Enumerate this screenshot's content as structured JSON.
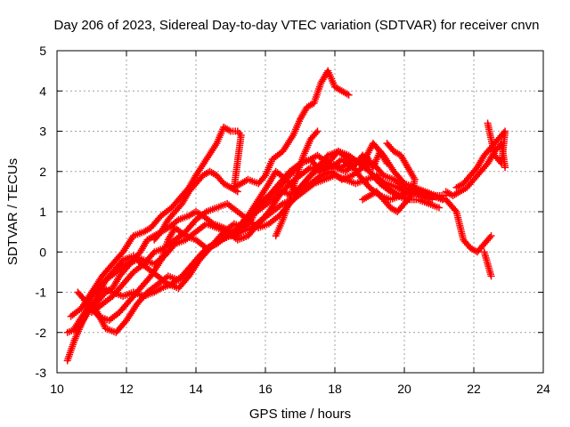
{
  "chart_data": {
    "type": "scatter",
    "title": "Day 206 of 2023, Sidereal Day-to-day VTEC variation (SDTVAR) for receiver cnvn",
    "xlabel": "GPS time / hours",
    "ylabel": "SDTVAR / TECUs",
    "xlim": [
      10,
      24
    ],
    "ylim": [
      -3,
      5
    ],
    "xticks": [
      10,
      12,
      14,
      16,
      18,
      20,
      22,
      24
    ],
    "yticks": [
      -3,
      -2,
      -1,
      0,
      1,
      2,
      3,
      4,
      5
    ],
    "grid": true,
    "marker": "+",
    "color": "#ff0000",
    "tracks": [
      {
        "x": [
          10.3,
          10.5,
          10.8,
          11.0,
          11.3,
          11.6,
          11.9,
          12.2,
          12.5,
          12.7,
          13.0,
          13.3,
          13.5,
          13.8,
          14.0,
          14.3,
          14.6,
          14.8,
          15.0,
          15.2,
          15.3,
          15.1,
          15.5,
          15.8,
          16.0,
          16.2,
          16.5,
          16.8,
          17.0,
          17.2,
          17.4,
          17.6,
          17.8,
          18.0,
          18.2,
          18.4
        ],
        "y": [
          -2.7,
          -2.2,
          -1.6,
          -1.0,
          -0.6,
          -0.3,
          0.0,
          0.4,
          0.5,
          0.6,
          0.9,
          1.1,
          1.3,
          1.6,
          1.9,
          2.3,
          2.7,
          3.1,
          3.0,
          3.0,
          2.9,
          1.6,
          1.8,
          1.7,
          1.9,
          2.3,
          2.5,
          2.9,
          3.3,
          3.6,
          3.7,
          4.2,
          4.5,
          4.1,
          4.0,
          3.9
        ]
      },
      {
        "x": [
          10.3,
          10.6,
          10.9,
          11.2,
          11.4,
          11.6,
          11.8,
          12.0,
          12.2,
          12.4,
          12.6,
          12.8,
          13.0,
          13.2,
          13.5,
          13.8,
          14.0,
          14.2,
          14.5,
          14.8,
          15.0,
          15.2,
          15.4,
          15.7,
          16.0,
          16.3,
          16.6,
          16.8,
          17.0,
          17.3,
          17.5,
          17.8,
          18.0,
          18.3,
          18.6,
          18.9,
          19.1,
          19.3,
          19.5
        ],
        "y": [
          -2.0,
          -1.9,
          -1.5,
          -1.2,
          -1.0,
          -0.9,
          -0.6,
          -0.4,
          -0.2,
          0.0,
          0.3,
          0.4,
          0.5,
          0.6,
          0.8,
          0.9,
          1.0,
          0.9,
          0.7,
          0.6,
          0.5,
          0.4,
          0.8,
          1.0,
          1.3,
          1.5,
          1.8,
          2.0,
          2.2,
          2.3,
          2.4,
          2.2,
          2.1,
          2.0,
          2.2,
          2.4,
          2.1,
          2.5,
          2.2
        ]
      },
      {
        "x": [
          10.4,
          10.7,
          11.0,
          11.3,
          11.6,
          11.9,
          12.2,
          12.5,
          12.8,
          13.0,
          13.3,
          13.6,
          13.9,
          14.2,
          14.5,
          14.8,
          15.1,
          15.4,
          15.6,
          15.8,
          16.1,
          16.4,
          16.7,
          17.0,
          17.3,
          17.6,
          17.9,
          18.2,
          18.5,
          18.8,
          19.0,
          19.2,
          19.5,
          19.8,
          20.0,
          20.3,
          20.6,
          20.9,
          21.2,
          21.5,
          21.7,
          21.9,
          22.1,
          22.3,
          22.5
        ],
        "y": [
          -1.6,
          -1.4,
          -1.0,
          -0.9,
          -1.0,
          -1.1,
          -1.0,
          -1.1,
          -1.0,
          -0.9,
          -0.8,
          -0.6,
          -0.3,
          0.0,
          0.2,
          0.5,
          0.7,
          0.6,
          0.8,
          1.2,
          1.4,
          1.7,
          2.0,
          2.2,
          2.3,
          2.0,
          2.1,
          2.3,
          2.1,
          2.4,
          2.0,
          1.8,
          1.7,
          1.6,
          1.5,
          1.5,
          1.4,
          1.4,
          1.3,
          1.0,
          0.3,
          0.1,
          0.0,
          0.2,
          0.4
        ]
      },
      {
        "x": [
          10.5,
          10.8,
          11.1,
          11.4,
          11.7,
          12.0,
          12.3,
          12.6,
          12.9,
          13.2,
          13.5,
          13.8,
          14.1,
          14.4,
          14.7,
          15.0,
          15.3,
          15.6,
          15.9,
          16.2,
          16.5,
          16.8,
          17.0,
          17.3,
          17.6,
          17.9,
          18.1,
          18.4,
          18.7,
          19.0,
          19.3,
          19.6,
          19.9,
          20.2,
          20.5,
          20.8
        ],
        "y": [
          -1.9,
          -1.5,
          -1.2,
          -0.7,
          -0.5,
          -0.3,
          -0.2,
          -0.4,
          -0.6,
          -0.8,
          -0.9,
          -0.6,
          -0.2,
          0.1,
          0.3,
          0.4,
          0.6,
          0.9,
          1.1,
          1.3,
          1.5,
          1.4,
          1.6,
          1.9,
          2.1,
          2.3,
          2.5,
          2.4,
          2.2,
          2.0,
          1.7,
          1.5,
          1.4,
          1.5,
          1.4,
          1.3
        ]
      },
      {
        "x": [
          10.6,
          10.9,
          11.2,
          11.5,
          11.8,
          12.1,
          12.4,
          12.7,
          13.0,
          13.2,
          13.4,
          13.7,
          14.0,
          14.3,
          14.6,
          14.9,
          15.2,
          15.5,
          15.8,
          16.1,
          16.3,
          16.6,
          16.9,
          17.2,
          17.5,
          17.8,
          18.1,
          18.4,
          18.7,
          19.0,
          19.3,
          19.6,
          19.9,
          20.2,
          20.5,
          20.8,
          21.1
        ],
        "y": [
          -1.0,
          -1.3,
          -1.6,
          -1.7,
          -1.5,
          -1.2,
          -0.9,
          -0.6,
          -0.2,
          0.3,
          0.6,
          0.4,
          0.3,
          0.1,
          0.2,
          0.4,
          0.6,
          0.9,
          1.3,
          1.7,
          2.0,
          1.8,
          1.5,
          1.8,
          2.1,
          2.4,
          2.5,
          2.3,
          1.9,
          1.6,
          1.4,
          1.3,
          1.4,
          1.6,
          1.5,
          1.4,
          1.3
        ]
      },
      {
        "x": [
          10.7,
          11.0,
          11.3,
          11.6,
          11.9,
          12.2,
          12.5,
          12.8,
          13.1,
          13.4,
          13.7,
          14.0,
          14.3,
          14.6,
          14.9,
          15.2,
          15.5,
          15.8,
          16.1,
          16.4,
          16.7,
          17.0,
          17.3,
          17.6,
          17.9,
          18.2,
          18.5,
          18.8,
          19.1,
          19.4,
          19.7,
          20.0,
          20.3,
          20.6,
          20.9,
          21.2
        ],
        "y": [
          -1.4,
          -1.1,
          -0.8,
          -0.5,
          -0.2,
          -0.1,
          -0.2,
          -0.3,
          -0.1,
          0.2,
          0.3,
          0.5,
          0.7,
          0.6,
          0.5,
          0.3,
          0.4,
          0.7,
          1.0,
          1.4,
          1.7,
          1.9,
          2.1,
          2.0,
          2.2,
          2.1,
          2.3,
          2.2,
          2.7,
          2.4,
          2.0,
          1.7,
          1.6,
          1.5,
          1.4,
          1.4
        ]
      },
      {
        "x": [
          10.8,
          11.1,
          11.4,
          11.7,
          12.0,
          12.3,
          12.6,
          12.9,
          13.2,
          13.5,
          13.8,
          14.1,
          14.4,
          14.7,
          15.0,
          15.3,
          15.6,
          15.9,
          16.2,
          16.5,
          16.8,
          17.1,
          17.4,
          17.7,
          18.0,
          18.3,
          18.6,
          18.9,
          19.2,
          19.5,
          19.8,
          20.1,
          20.4,
          20.7,
          21.0
        ],
        "y": [
          -1.2,
          -1.4,
          -1.9,
          -2.0,
          -1.7,
          -1.3,
          -1.0,
          -0.8,
          -0.6,
          -0.7,
          -0.5,
          -0.2,
          0.1,
          0.3,
          0.4,
          0.5,
          0.6,
          0.8,
          1.0,
          1.2,
          1.3,
          1.5,
          1.7,
          1.8,
          1.9,
          1.8,
          1.7,
          1.8,
          1.9,
          1.6,
          1.4,
          1.3,
          1.3,
          1.2,
          1.1
        ]
      },
      {
        "x": [
          11.0,
          11.3,
          11.6,
          11.9,
          12.2,
          12.5,
          12.8,
          13.1,
          13.4,
          13.7,
          14.0,
          14.3,
          14.6,
          14.9,
          15.2,
          15.5,
          15.8,
          16.1,
          16.4,
          16.7,
          17.0,
          17.3,
          17.6,
          17.9,
          18.2,
          18.5,
          18.8,
          19.1,
          19.4,
          19.7,
          20.0,
          20.3
        ],
        "y": [
          -1.5,
          -1.3,
          -1.1,
          -0.8,
          -0.5,
          -0.3,
          0.0,
          0.1,
          0.3,
          0.5,
          0.8,
          1.0,
          1.1,
          1.2,
          1.0,
          0.8,
          0.6,
          0.7,
          0.9,
          1.2,
          1.5,
          1.7,
          1.9,
          2.0,
          1.8,
          1.9,
          2.1,
          2.2,
          1.9,
          1.8,
          1.6,
          1.5
        ]
      },
      {
        "x": [
          16.3,
          16.5,
          16.7,
          16.9,
          17.1,
          17.3,
          17.5
        ],
        "y": [
          0.4,
          0.8,
          1.3,
          1.9,
          2.4,
          2.8,
          3.0
        ]
      },
      {
        "x": [
          19.5,
          19.7,
          19.9,
          20.1,
          20.3,
          20.2,
          20.0,
          19.8,
          19.6,
          19.4,
          19.2,
          19.0,
          18.8
        ],
        "y": [
          2.7,
          2.5,
          2.4,
          2.1,
          1.8,
          1.4,
          1.2,
          1.0,
          1.1,
          1.3,
          1.5,
          1.4,
          1.3
        ]
      },
      {
        "x": [
          21.5,
          21.7,
          21.9,
          22.1,
          22.3,
          22.5,
          22.7,
          22.9,
          22.8,
          22.6,
          22.4
        ],
        "y": [
          1.6,
          1.7,
          1.9,
          2.1,
          2.4,
          2.6,
          2.8,
          3.0,
          2.2,
          2.4,
          3.2
        ]
      },
      {
        "x": [
          21.2,
          21.4,
          21.6,
          21.8,
          22.0,
          22.2,
          22.4,
          22.6,
          22.8,
          22.9
        ],
        "y": [
          1.5,
          1.4,
          1.5,
          1.6,
          1.8,
          2.0,
          2.2,
          2.5,
          2.7,
          2.1
        ]
      },
      {
        "x": [
          22.3,
          22.4,
          22.5
        ],
        "y": [
          0.0,
          -0.3,
          -0.6
        ]
      },
      {
        "x": [
          12.8,
          13.0,
          13.2,
          13.4,
          13.6,
          13.8,
          14.0,
          14.2,
          14.4,
          14.6,
          14.8,
          15.0,
          15.2
        ],
        "y": [
          0.3,
          0.5,
          0.8,
          1.0,
          1.2,
          1.5,
          1.7,
          1.9,
          2.0,
          1.9,
          1.7,
          1.6,
          1.5
        ]
      }
    ]
  }
}
